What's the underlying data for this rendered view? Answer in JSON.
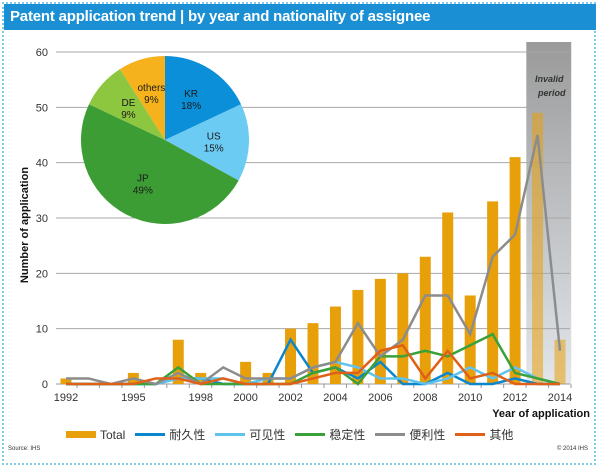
{
  "title": "Patent application trend | by year and nationality of assignee",
  "source": "Source: IHS",
  "copyright": "© 2014 IHS",
  "chart_data": {
    "type": "bar",
    "title": "Patent application trend | by year and nationality of assignee",
    "xlabel": "Year of application",
    "ylabel": "Number of application",
    "ylim": [
      0,
      60
    ],
    "yticks": [
      0,
      10,
      20,
      30,
      40,
      50,
      60
    ],
    "grid": true,
    "x": [
      1992,
      1993,
      1994,
      1995,
      1996,
      1997,
      1998,
      1999,
      2000,
      2001,
      2002,
      2003,
      2004,
      2005,
      2006,
      2007,
      2008,
      2009,
      2010,
      2011,
      2012,
      2013,
      2014
    ],
    "xtick_labels": [
      "1992",
      "1995",
      "1998",
      "2000",
      "2002",
      "2004",
      "2006",
      "2008",
      "2010",
      "2012",
      "2014"
    ],
    "annotation": {
      "text_line1": "Invalid",
      "text_line2": "period",
      "x_range": [
        2012.5,
        2014.5
      ]
    },
    "bar_series": {
      "name": "Total",
      "color": "#e8a00a",
      "values": [
        1,
        0,
        0,
        2,
        0,
        8,
        2,
        0,
        4,
        2,
        10,
        11,
        14,
        17,
        19,
        20,
        23,
        31,
        16,
        33,
        41,
        49,
        8
      ]
    },
    "line_series": [
      {
        "name": "耐久性",
        "color": "#0a86cc",
        "values": [
          0,
          0,
          0,
          0,
          0,
          1,
          1,
          0,
          0,
          0,
          8,
          2,
          3,
          1,
          4,
          0,
          0,
          2,
          0,
          0,
          1,
          0,
          0
        ]
      },
      {
        "name": "可见性",
        "color": "#5fc3ee",
        "values": [
          0,
          0,
          0,
          0,
          0,
          1,
          1,
          1,
          0,
          1,
          1,
          3,
          4,
          3,
          1,
          1,
          0,
          1,
          3,
          1,
          3,
          1,
          0
        ]
      },
      {
        "name": "稳定性",
        "color": "#3aa03a",
        "values": [
          0,
          0,
          0,
          0,
          0,
          3,
          0,
          0,
          0,
          0,
          0,
          2,
          3,
          0,
          5,
          5,
          6,
          5,
          7,
          9,
          2,
          1,
          0
        ]
      },
      {
        "name": "便利性",
        "color": "#8c8c8c",
        "values": [
          1,
          1,
          0,
          1,
          0,
          2,
          0,
          3,
          1,
          1,
          1,
          3,
          4,
          11,
          5,
          8,
          16,
          16,
          9,
          23,
          27,
          45,
          6
        ]
      },
      {
        "name": "其他",
        "color": "#e0601a",
        "values": [
          0,
          0,
          0,
          0,
          1,
          1,
          0,
          1,
          0,
          0,
          0,
          1,
          2,
          2,
          6,
          7,
          1,
          6,
          1,
          2,
          0,
          0,
          0
        ]
      }
    ],
    "legend": "bottom",
    "inset_pie": {
      "type": "pie",
      "slices": [
        {
          "label": "KR",
          "value": 18,
          "color": "#0a8fd8"
        },
        {
          "label": "US",
          "value": 15,
          "color": "#6ccbf3"
        },
        {
          "label": "JP",
          "value": 49,
          "color": "#3d9d35"
        },
        {
          "label": "DE",
          "value": 9,
          "color": "#8dc63f"
        },
        {
          "label": "others",
          "value": 9,
          "color": "#f5b21c"
        }
      ]
    }
  }
}
